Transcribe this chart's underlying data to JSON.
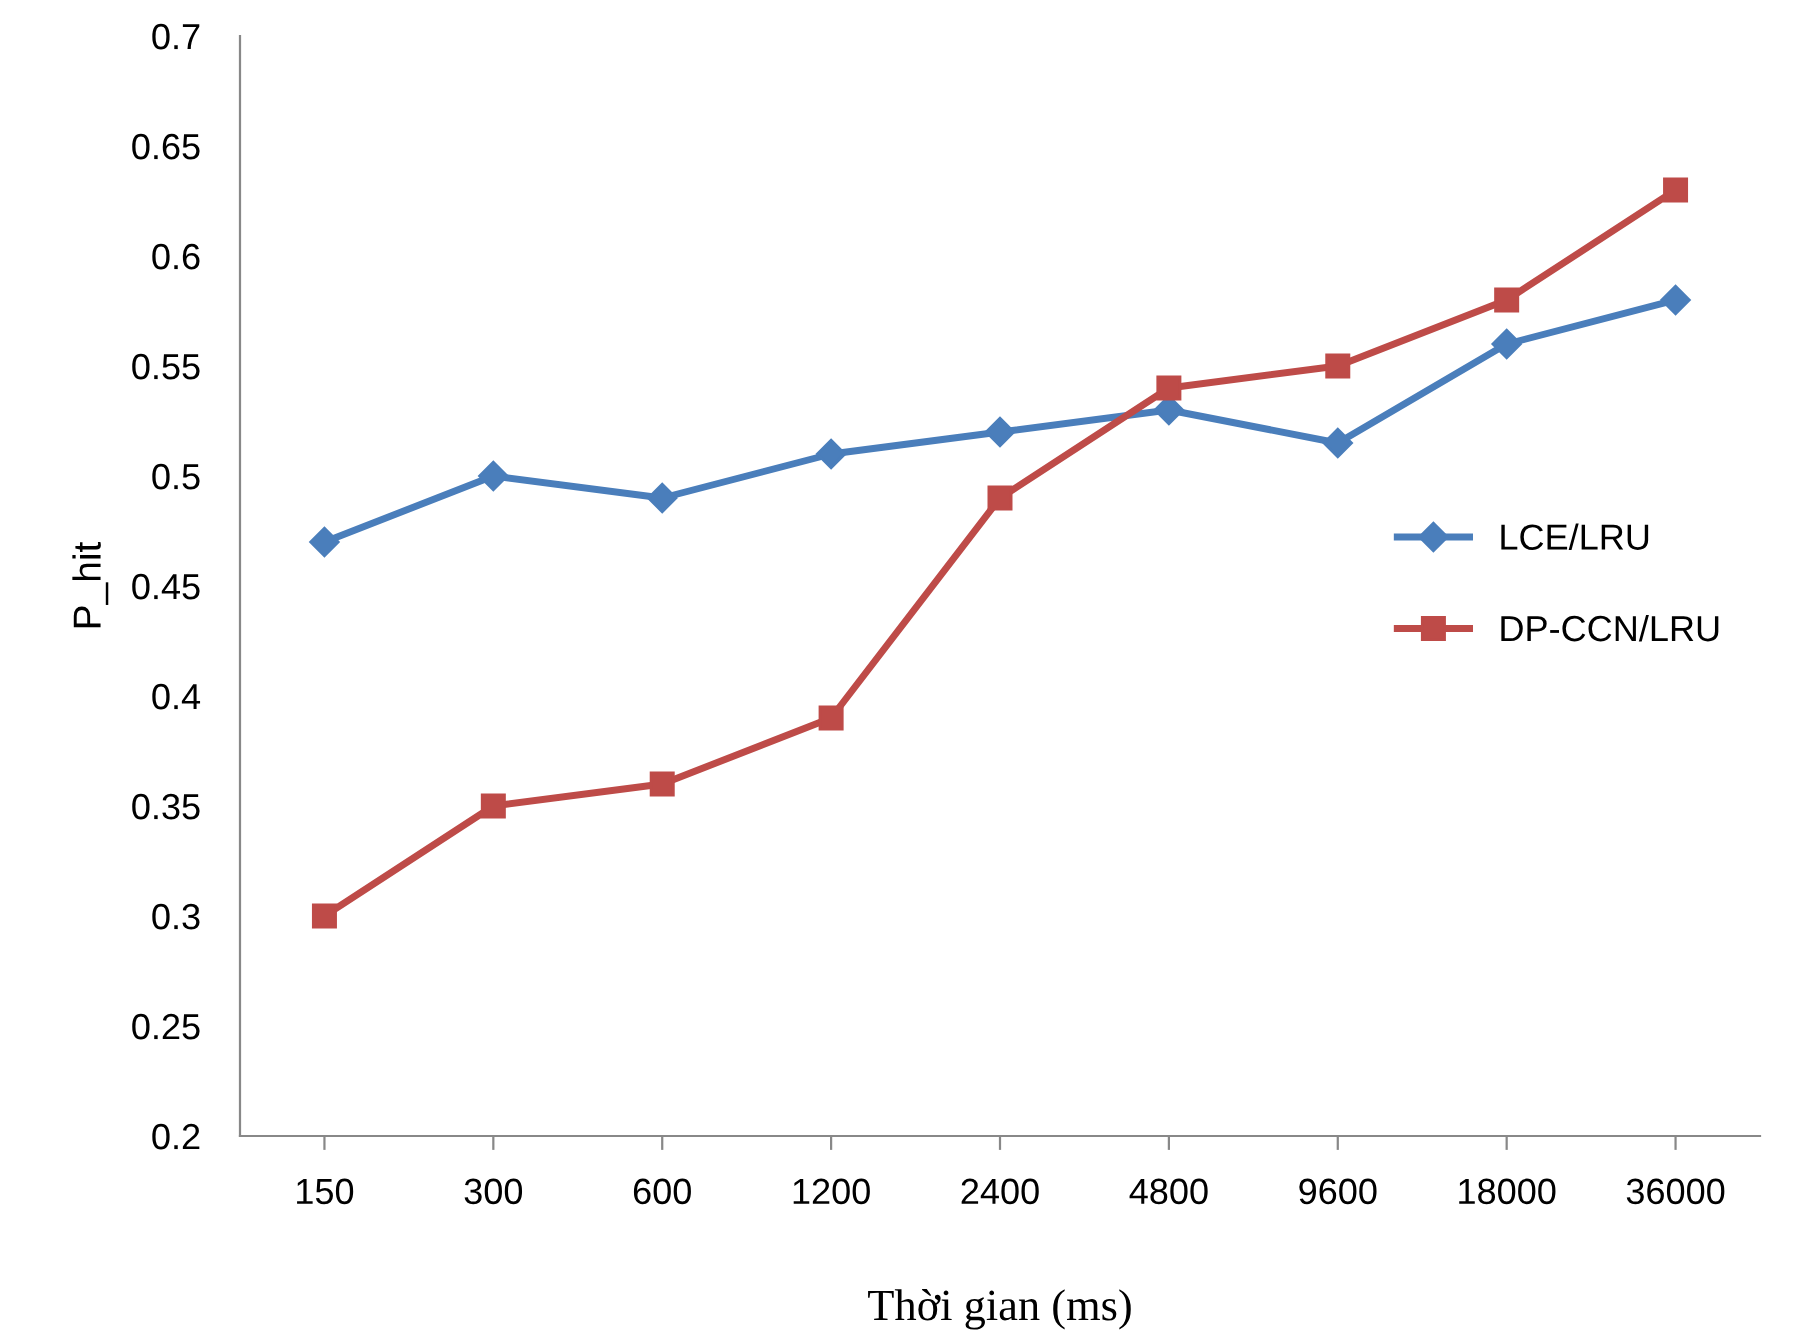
{
  "chart_data": {
    "type": "line",
    "xlabel": "Thời gian (ms)",
    "ylabel": "P_hit",
    "categories": [
      "150",
      "300",
      "600",
      "1200",
      "2400",
      "4800",
      "9600",
      "18000",
      "36000"
    ],
    "series": [
      {
        "name": "LCE/LRU",
        "color": "#4a7ebb",
        "marker": "diamond",
        "values": [
          0.47,
          0.5,
          0.49,
          0.51,
          0.52,
          0.53,
          0.515,
          0.56,
          0.58
        ]
      },
      {
        "name": "DP-CCN/LRU",
        "color": "#be4b48",
        "marker": "square",
        "values": [
          0.3,
          0.35,
          0.36,
          0.39,
          0.49,
          0.54,
          0.55,
          0.58,
          0.63
        ]
      }
    ],
    "ylim": [
      0.2,
      0.7
    ],
    "yticks": [
      0.2,
      0.25,
      0.3,
      0.35,
      0.4,
      0.45,
      0.5,
      0.55,
      0.6,
      0.65,
      0.7
    ],
    "grid": false,
    "legend": "right",
    "line_style": "solid"
  }
}
